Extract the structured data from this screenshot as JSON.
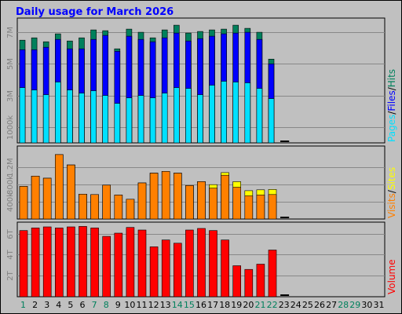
{
  "title": "Daily usage for March 2026",
  "colors": {
    "background": "#c0c0c0",
    "pages": "#00e0ff",
    "files": "#0000ff",
    "hits": "#00805c",
    "visits": "#ff8000",
    "sites": "#ffff00",
    "volume": "#ff0000",
    "title": "#0000ff",
    "weekend_day": "#00805c"
  },
  "chart_data": [
    {
      "type": "bar",
      "panel": "hits",
      "categories": [
        "1",
        "2",
        "3",
        "4",
        "5",
        "6",
        "7",
        "8",
        "9",
        "10",
        "11",
        "12",
        "13",
        "14",
        "15",
        "16",
        "17",
        "18",
        "19",
        "20",
        "21",
        "22",
        "23",
        "24",
        "25",
        "26",
        "27",
        "28",
        "29",
        "30",
        "31"
      ],
      "weekend_days": [
        "1",
        "7",
        "8",
        "14",
        "15",
        "21",
        "22",
        "28",
        "29"
      ],
      "series_labels": [
        "Pages",
        "Files",
        "Hits"
      ],
      "series_label_separator": "/",
      "ytick_labels": [
        "1000k",
        "3M",
        "5M",
        "7M"
      ],
      "yticks": [
        1000000,
        3000000,
        5000000,
        7000000
      ],
      "ylim": [
        0,
        7900000
      ],
      "grid": true,
      "series": [
        {
          "name": "Hits",
          "values": [
            6500000,
            6650000,
            6400000,
            6900000,
            6450000,
            6650000,
            7150000,
            7100000,
            5950000,
            7200000,
            7000000,
            6650000,
            7150000,
            7450000,
            6950000,
            7050000,
            7150000,
            7200000,
            7450000,
            7250000,
            7000000,
            5300000,
            0,
            0,
            0,
            0,
            0,
            0,
            0,
            0,
            0
          ]
        },
        {
          "name": "Files",
          "values": [
            5900000,
            5900000,
            6050000,
            6550000,
            5950000,
            5950000,
            6550000,
            6800000,
            5800000,
            6750000,
            6550000,
            6400000,
            6650000,
            6950000,
            6450000,
            6600000,
            6750000,
            6900000,
            6950000,
            7000000,
            6550000,
            5000000,
            0,
            0,
            0,
            0,
            0,
            0,
            0,
            0,
            0
          ]
        },
        {
          "name": "Pages",
          "values": [
            3500000,
            3350000,
            3050000,
            3850000,
            3350000,
            3150000,
            3300000,
            3000000,
            2500000,
            2850000,
            3000000,
            2850000,
            3150000,
            3500000,
            3450000,
            3050000,
            3650000,
            3900000,
            3850000,
            3800000,
            3450000,
            2800000,
            0,
            0,
            0,
            0,
            0,
            0,
            0,
            0,
            0
          ]
        }
      ]
    },
    {
      "type": "bar",
      "panel": "visits",
      "categories": [
        "1",
        "2",
        "3",
        "4",
        "5",
        "6",
        "7",
        "8",
        "9",
        "10",
        "11",
        "12",
        "13",
        "14",
        "15",
        "16",
        "17",
        "18",
        "19",
        "20",
        "21",
        "22",
        "23",
        "24",
        "25",
        "26",
        "27",
        "28",
        "29",
        "30",
        "31"
      ],
      "series_labels": [
        "Visits",
        "Sites"
      ],
      "series_label_separator": "/",
      "ytick_labels": [
        "400k",
        "800k",
        "1.2M"
      ],
      "yticks": [
        400000,
        800000,
        1200000
      ],
      "ylim": [
        0,
        1700000
      ],
      "grid": true,
      "series": [
        {
          "name": "Sites",
          "values": [
            760000,
            1000000,
            950000,
            1500000,
            1260000,
            580000,
            570000,
            790000,
            560000,
            460000,
            840000,
            1070000,
            1110000,
            1070000,
            780000,
            870000,
            800000,
            1080000,
            870000,
            660000,
            680000,
            690000,
            0,
            0,
            0,
            0,
            0,
            0,
            0,
            0,
            0
          ]
        },
        {
          "name": "Visits",
          "values": [
            760000,
            1000000,
            950000,
            1500000,
            1260000,
            580000,
            570000,
            790000,
            560000,
            460000,
            840000,
            1070000,
            1110000,
            1070000,
            780000,
            870000,
            720000,
            1020000,
            740000,
            540000,
            560000,
            570000,
            0,
            0,
            0,
            0,
            0,
            0,
            0,
            0,
            0
          ]
        }
      ]
    },
    {
      "type": "bar",
      "panel": "volume",
      "categories": [
        "1",
        "2",
        "3",
        "4",
        "5",
        "6",
        "7",
        "8",
        "9",
        "10",
        "11",
        "12",
        "13",
        "14",
        "15",
        "16",
        "17",
        "18",
        "19",
        "20",
        "21",
        "22",
        "23",
        "24",
        "25",
        "26",
        "27",
        "28",
        "29",
        "30",
        "31"
      ],
      "series_labels": [
        "Volume"
      ],
      "ytick_labels": [
        "2T",
        "4T",
        "6T"
      ],
      "yticks": [
        2,
        4,
        6
      ],
      "ylim": [
        0,
        7.1
      ],
      "grid": true,
      "series": [
        {
          "name": "Volume",
          "values": [
            6.3,
            6.55,
            6.65,
            6.55,
            6.65,
            6.7,
            6.55,
            5.75,
            6.05,
            6.6,
            6.35,
            4.75,
            5.4,
            5.1,
            6.35,
            6.5,
            6.3,
            5.4,
            2.95,
            2.6,
            3.1,
            4.45,
            0,
            0,
            0,
            0,
            0,
            0,
            0,
            0,
            0
          ]
        }
      ]
    }
  ]
}
